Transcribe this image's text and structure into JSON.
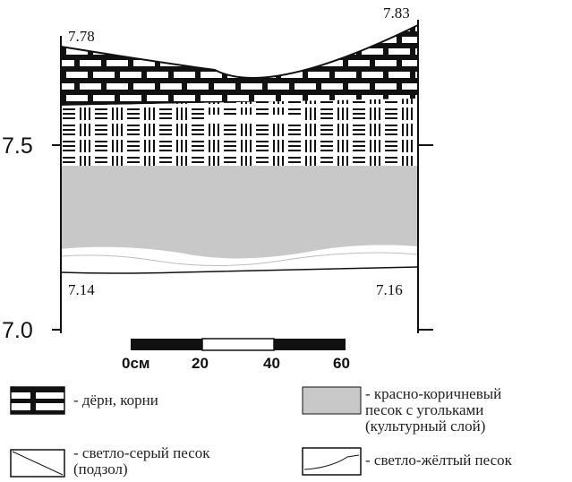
{
  "profile": {
    "axis_ticks": [
      {
        "value": 7.5,
        "label": "7.5"
      },
      {
        "value": 7.0,
        "label": "7.0"
      }
    ],
    "elevation_labels": {
      "top_left": "7.78",
      "top_right": "7.83",
      "bottom_left": "7.14",
      "bottom_right": "7.16"
    },
    "layers": [
      {
        "id": "turf",
        "pattern": "brick"
      },
      {
        "id": "podzol",
        "pattern": "hatch-lines"
      },
      {
        "id": "cultural",
        "color": "#c8c8c8"
      },
      {
        "id": "yellow-sand",
        "color": "#ffffff"
      }
    ]
  },
  "scale_bar": {
    "labels": [
      "0см",
      "20",
      "40",
      "60"
    ]
  },
  "legend": [
    {
      "key": "turf",
      "text": "- дёрн, корни"
    },
    {
      "key": "cultural",
      "text": "- красно-коричневый\nпесок с угольками\n(культурный слой)"
    },
    {
      "key": "podzol",
      "text": "- светло-серый песок\n(подзол)"
    },
    {
      "key": "yellow-sand",
      "text": "- светло-жёлтый песок"
    }
  ]
}
